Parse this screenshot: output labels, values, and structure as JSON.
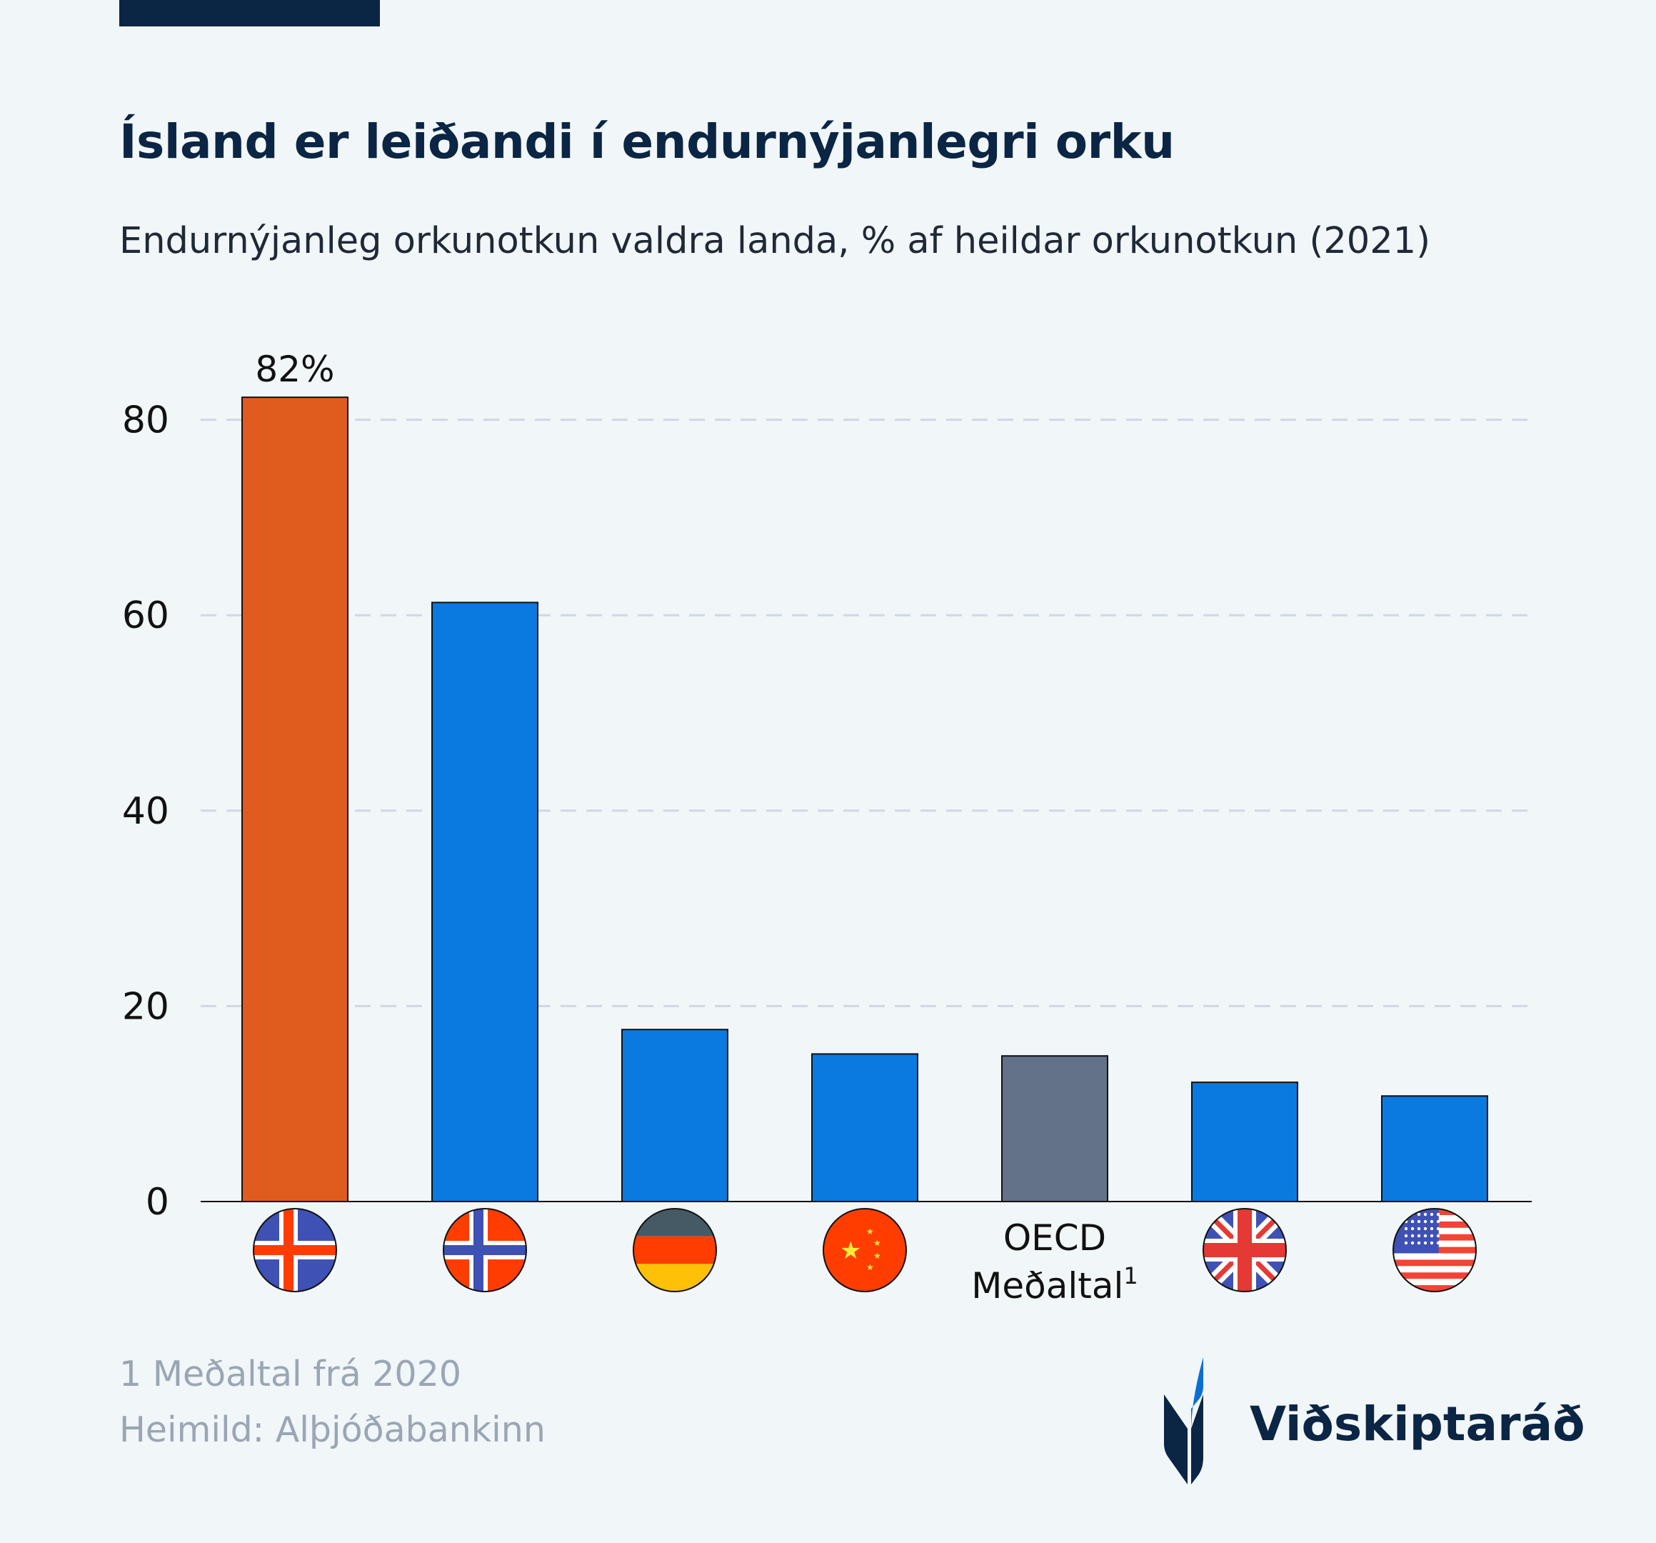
{
  "header": {
    "title": "Ísland er leiðandi í endurnýjanlegri orku",
    "subtitle": "Endurnýjanleg orkunotkun valdra landa, % af heildar orkunotkun (2021)"
  },
  "chart_data": {
    "type": "bar",
    "categories": [
      "Iceland",
      "Norway",
      "Germany",
      "China",
      "OECD Meðaltal¹",
      "United Kingdom",
      "United States"
    ],
    "category_display": [
      "flag-iceland",
      "flag-norway",
      "flag-germany",
      "flag-china",
      "OECD Meðaltal¹",
      "flag-uk",
      "flag-usa"
    ],
    "values": [
      82.3,
      61.3,
      17.6,
      15.1,
      14.9,
      12.2,
      10.8
    ],
    "bar_colors": [
      "#e05c1e",
      "#0a7ae0",
      "#0a7ae0",
      "#0a7ae0",
      "#637289",
      "#0a7ae0",
      "#0a7ae0"
    ],
    "data_labels": [
      {
        "index": 0,
        "text": "82%"
      }
    ],
    "ylim": [
      0,
      88
    ],
    "yticks": [
      0,
      20,
      40,
      60,
      80
    ],
    "ytick_labels": [
      "0",
      "20",
      "40",
      "60",
      "80"
    ],
    "grid": true,
    "oecd_label_lines": [
      "OECD",
      "Meðaltal"
    ],
    "oecd_label_sup": "1"
  },
  "footer": {
    "note": "1 Meðaltal frá 2020",
    "source": "Heimild: Alþjóðabankinn",
    "logo_text": "Viðskiptaráð"
  },
  "colors": {
    "navy": "#0b2544",
    "accent_blue": "#0a7ae0",
    "orange": "#e05c1e",
    "grey": "#637289"
  }
}
